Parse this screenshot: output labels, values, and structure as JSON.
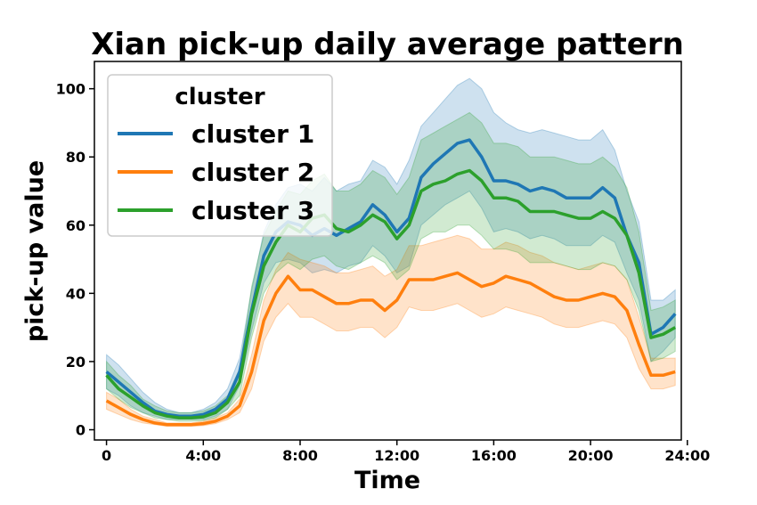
{
  "chart_data": {
    "type": "line",
    "title": "Xian pick-up daily average pattern",
    "xlabel": "Time",
    "ylabel": "pick-up value",
    "xlim": [
      -1,
      47.5
    ],
    "ylim": [
      -3,
      108
    ],
    "x_ticks": [
      {
        "x": 0,
        "label": "0"
      },
      {
        "x": 8,
        "label": "4:00"
      },
      {
        "x": 16,
        "label": "8:00"
      },
      {
        "x": 24,
        "label": "12:00"
      },
      {
        "x": 32,
        "label": "16:00"
      },
      {
        "x": 40,
        "label": "20:00"
      },
      {
        "x": 48,
        "label": "24:00"
      }
    ],
    "y_ticks": [
      {
        "y": 0,
        "label": "0"
      },
      {
        "y": 20,
        "label": "20"
      },
      {
        "y": 40,
        "label": "40"
      },
      {
        "y": 60,
        "label": "60"
      },
      {
        "y": 80,
        "label": "80"
      },
      {
        "y": 100,
        "label": "100"
      }
    ],
    "legend": {
      "title": "cluster",
      "position": "upper-left"
    },
    "x": [
      0,
      1,
      2,
      3,
      4,
      5,
      6,
      7,
      8,
      9,
      10,
      11,
      12,
      13,
      14,
      15,
      16,
      17,
      18,
      19,
      20,
      21,
      22,
      23,
      24,
      25,
      26,
      27,
      28,
      29,
      30,
      31,
      32,
      33,
      34,
      35,
      36,
      37,
      38,
      39,
      40,
      41,
      42,
      43,
      44,
      45,
      46,
      47
    ],
    "series": [
      {
        "name": "cluster 1",
        "color": "#1f77b4",
        "values": [
          17,
          14,
          11,
          8,
          5.5,
          4.5,
          4,
          4,
          4.5,
          6,
          9,
          17,
          35,
          51,
          58,
          61,
          60,
          57,
          59,
          57,
          59,
          61,
          66,
          63,
          58,
          62,
          74,
          78,
          81,
          84,
          85,
          80,
          73,
          73,
          72,
          70,
          71,
          70,
          68,
          68,
          68,
          71,
          68,
          57,
          49,
          28,
          30,
          34
        ],
        "upper": [
          22,
          19,
          15,
          11,
          8,
          6,
          5,
          5,
          6,
          8,
          12,
          21,
          41,
          58,
          66,
          71,
          72,
          70,
          74,
          70,
          72,
          73,
          79,
          77,
          72,
          79,
          89,
          93,
          97,
          101,
          103,
          100,
          93,
          90,
          88,
          87,
          88,
          87,
          86,
          85,
          85,
          88,
          82,
          70,
          61,
          38,
          38,
          41
        ],
        "lower": [
          12,
          10,
          7,
          5,
          4,
          3,
          3,
          3,
          3,
          4,
          6,
          13,
          29,
          43,
          49,
          50,
          49,
          46,
          47,
          46,
          48,
          49,
          54,
          51,
          46,
          48,
          60,
          63,
          66,
          68,
          70,
          65,
          58,
          59,
          58,
          56,
          57,
          56,
          54,
          54,
          54,
          57,
          55,
          46,
          38,
          20,
          23,
          27
        ]
      },
      {
        "name": "cluster 2",
        "color": "#ff7f0e",
        "values": [
          8.5,
          6.5,
          4.5,
          3,
          2,
          1.5,
          1.5,
          1.5,
          1.8,
          2.5,
          4,
          7,
          17,
          32,
          40,
          45,
          41,
          41,
          39,
          37,
          37,
          38,
          38,
          35,
          38,
          44,
          44,
          44,
          45,
          46,
          44,
          42,
          43,
          45,
          44,
          43,
          41,
          39,
          38,
          38,
          39,
          40,
          39,
          35,
          25,
          16,
          16,
          17
        ],
        "upper": [
          11,
          9,
          6,
          4,
          3,
          2,
          2,
          2,
          2.5,
          3.5,
          5,
          9,
          22,
          38,
          47,
          52,
          50,
          49,
          48,
          46,
          46,
          47,
          48,
          45,
          47,
          54,
          54,
          55,
          56,
          57,
          56,
          53,
          53,
          55,
          54,
          52,
          51,
          49,
          48,
          47,
          48,
          49,
          48,
          44,
          33,
          21,
          21,
          21
        ],
        "lower": [
          6,
          4.5,
          3,
          2,
          1.5,
          1,
          1,
          1,
          1.2,
          1.8,
          3,
          5,
          12,
          26,
          33,
          37,
          33,
          33,
          31,
          29,
          29,
          30,
          30,
          27,
          30,
          36,
          35,
          35,
          36,
          37,
          35,
          33,
          34,
          36,
          35,
          34,
          33,
          31,
          30,
          30,
          31,
          32,
          31,
          27,
          18,
          12,
          12,
          13
        ]
      },
      {
        "name": "cluster 3",
        "color": "#2ca02c",
        "values": [
          16,
          12,
          9.5,
          7,
          5,
          4,
          3.5,
          3.5,
          3.8,
          5,
          8,
          14,
          34,
          48,
          55,
          60,
          58,
          62,
          63,
          59,
          58,
          60,
          63,
          61,
          56,
          60,
          70,
          72,
          73,
          75,
          76,
          73,
          68,
          68,
          67,
          64,
          64,
          64,
          63,
          62,
          62,
          64,
          62,
          57,
          46,
          27,
          28,
          30
        ],
        "upper": [
          20,
          16,
          13,
          9,
          7,
          5.5,
          5,
          5,
          5.5,
          7,
          10,
          18,
          42,
          57,
          64,
          70,
          69,
          73,
          75,
          70,
          70,
          72,
          76,
          74,
          69,
          74,
          85,
          87,
          89,
          91,
          93,
          90,
          84,
          84,
          83,
          80,
          80,
          80,
          79,
          78,
          78,
          80,
          77,
          71,
          58,
          35,
          36,
          38
        ],
        "lower": [
          12,
          9,
          6.5,
          5,
          3.5,
          3,
          2.5,
          2.5,
          2.7,
          3.5,
          6,
          10,
          27,
          40,
          46,
          49,
          47,
          50,
          51,
          48,
          47,
          49,
          51,
          49,
          44,
          47,
          56,
          58,
          58,
          60,
          60,
          57,
          53,
          53,
          52,
          49,
          49,
          49,
          48,
          47,
          47,
          49,
          48,
          44,
          35,
          20,
          21,
          23
        ]
      }
    ]
  }
}
